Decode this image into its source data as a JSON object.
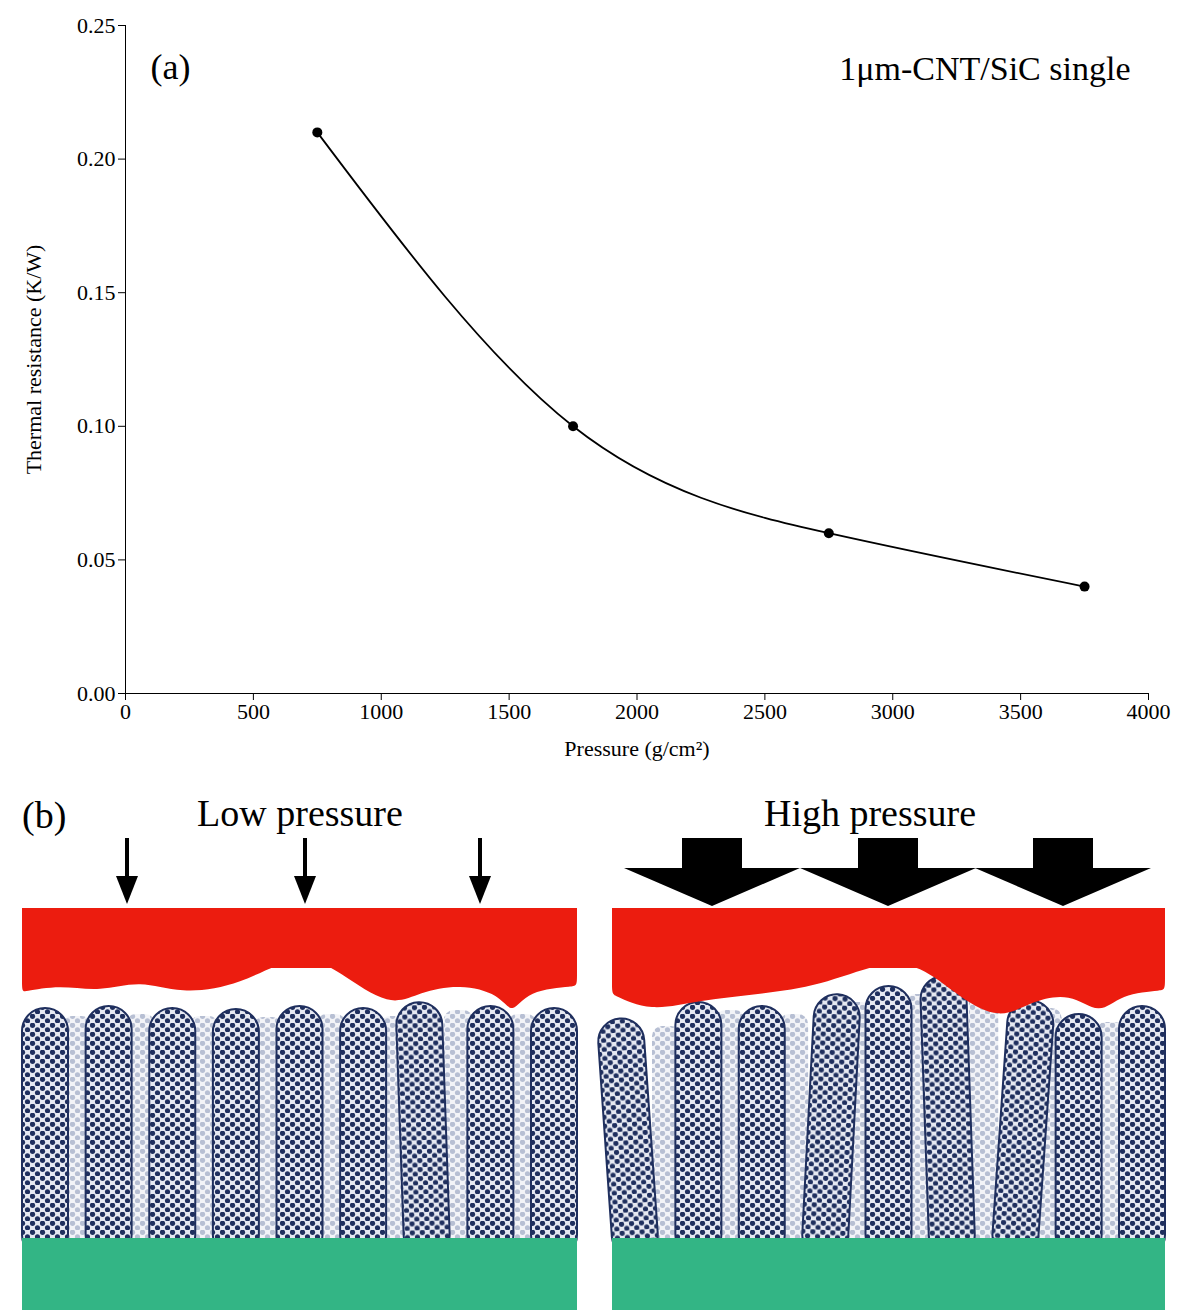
{
  "chart_data": {
    "type": "line",
    "panel": "(a)",
    "title": "1μm-CNT/SiC single",
    "x_label": "Pressure (g/cm²)",
    "y_label": "Thermal resistance (K/W)",
    "x": [
      750,
      1750,
      2750,
      3750
    ],
    "values": [
      0.21,
      0.1,
      0.06,
      0.04
    ],
    "color": "#000000",
    "marker": "circle",
    "line_style": "solid",
    "xlim": [
      0,
      4000
    ],
    "xticks": [
      0,
      500,
      1000,
      1500,
      2000,
      2500,
      3000,
      3500,
      4000
    ],
    "ylim": [
      0,
      0.25
    ],
    "yticks": [
      {
        "value": 0,
        "label": "0.00"
      },
      {
        "value": 0.05,
        "label": "0.05"
      },
      {
        "value": 0.1,
        "label": "0.10"
      },
      {
        "value": 0.15,
        "label": "0.15"
      },
      {
        "value": 0.2,
        "label": "0.20"
      },
      {
        "value": 0.25,
        "label": "0.25"
      }
    ],
    "grid": false
  },
  "diagram": {
    "panel": "(b)",
    "panels": [
      {
        "label": "Low pressure"
      },
      {
        "label": "High pressure"
      }
    ]
  }
}
